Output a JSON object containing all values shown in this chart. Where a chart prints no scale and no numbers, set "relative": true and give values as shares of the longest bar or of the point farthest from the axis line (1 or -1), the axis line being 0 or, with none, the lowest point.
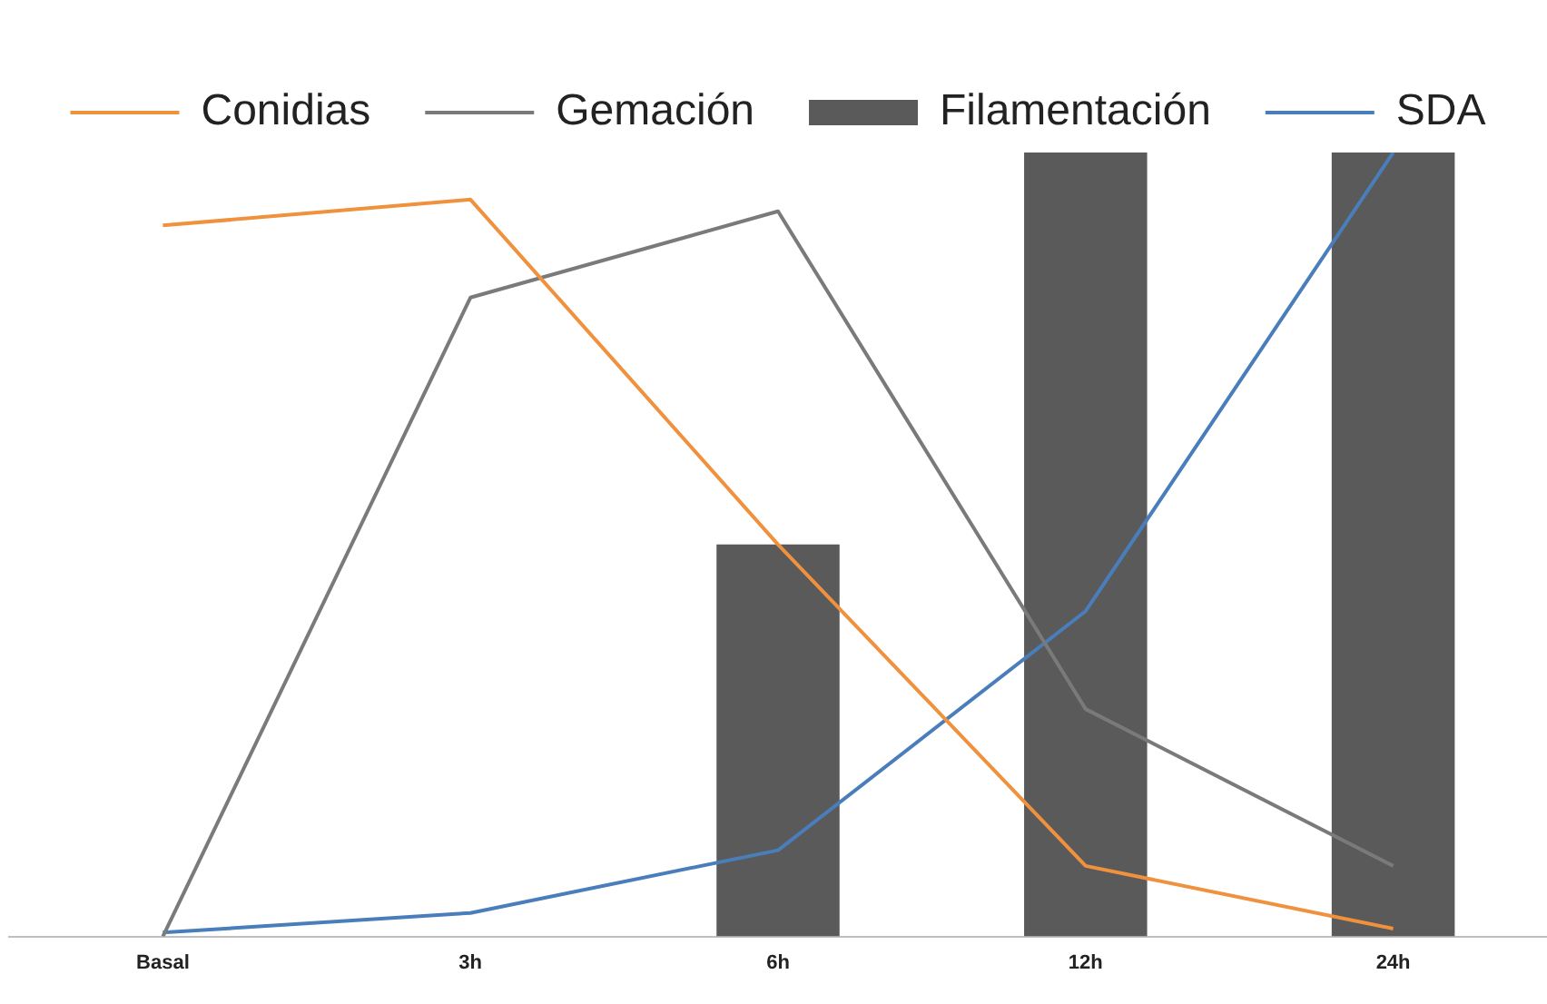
{
  "chart_data": {
    "type": "line",
    "relative": true,
    "legend": "top",
    "categories": [
      "Basal",
      "3h",
      "6h",
      "12h",
      "24h"
    ],
    "series": [
      {
        "name": "Conidias",
        "color": "#f0913e",
        "values": [
          0.907,
          0.94,
          0.5,
          0.09,
          0.01
        ]
      },
      {
        "name": "Gemación",
        "color": "#7a7a7a",
        "values": [
          0,
          0.815,
          0.925,
          0.29,
          0.09
        ]
      },
      {
        "name": "Filamentación",
        "type": "bar",
        "color": "#5a5a5a",
        "values": [
          0,
          0,
          0.5,
          1,
          1
        ]
      },
      {
        "name": "SDA",
        "color": "#4a7ebb",
        "values": [
          0.005,
          0.03,
          0.11,
          0.415,
          1
        ]
      }
    ]
  }
}
